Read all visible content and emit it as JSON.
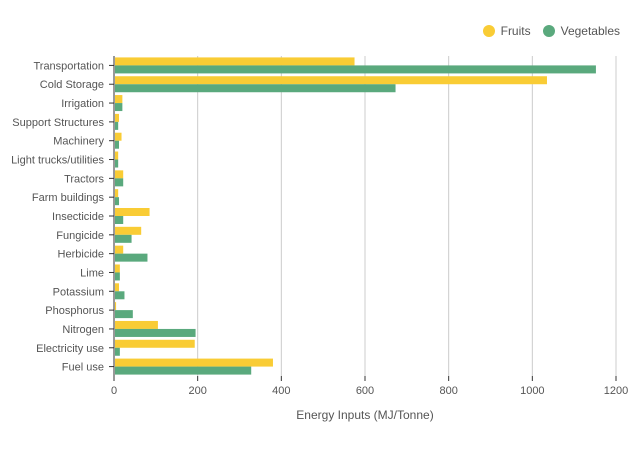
{
  "chart_data": {
    "type": "bar",
    "orientation": "horizontal",
    "xlabel": "Energy Inputs (MJ/Tonne)",
    "ylabel": "",
    "xlim": [
      0,
      1200
    ],
    "xticks": [
      0,
      200,
      400,
      600,
      800,
      1000,
      1200
    ],
    "grid": true,
    "legend_position": "top-right",
    "categories": [
      "Transportation",
      "Cold Storage",
      "Irrigation",
      "Support Structures",
      "Machinery",
      "Light trucks/utilities",
      "Tractors",
      "Farm buildings",
      "Insecticide",
      "Fungicide",
      "Herbicide",
      "Lime",
      "Potassium",
      "Phosphorus",
      "Nitrogen",
      "Electricity use",
      "Fuel use"
    ],
    "series": [
      {
        "name": "Fruits",
        "color": "#f9cc35",
        "values": [
          575,
          1035,
          20,
          12,
          18,
          10,
          22,
          10,
          85,
          65,
          22,
          14,
          12,
          5,
          105,
          193,
          380
        ]
      },
      {
        "name": "Vegetables",
        "color": "#5aa97d",
        "values": [
          1152,
          673,
          20,
          10,
          12,
          10,
          22,
          12,
          22,
          42,
          80,
          14,
          25,
          45,
          195,
          14,
          328
        ]
      }
    ]
  }
}
